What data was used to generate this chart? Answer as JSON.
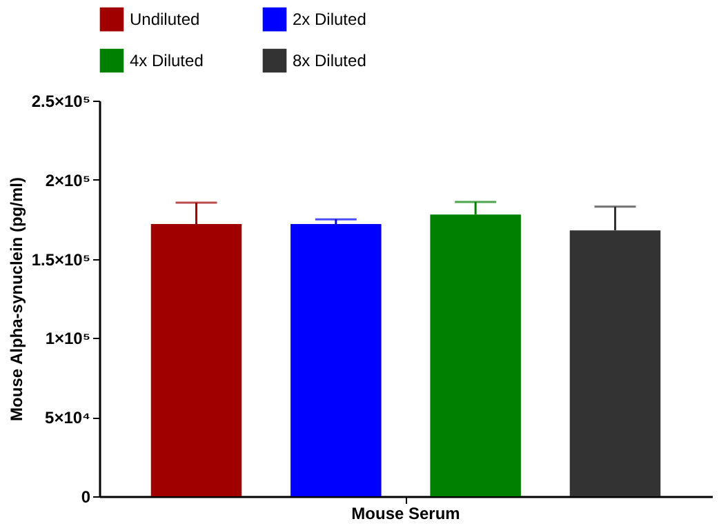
{
  "chart_data": {
    "type": "bar",
    "ylabel": "Mouse Alpha-synuclein (pg/ml)",
    "categories": [
      "Mouse Serum"
    ],
    "series": [
      {
        "name": "Undiluted",
        "color": "#a00000",
        "values": [
          172000
        ],
        "errors": [
          [
            172000,
            185500
          ]
        ]
      },
      {
        "name": "2x Diluted",
        "color": "#0000ff",
        "values": [
          172000
        ],
        "errors": [
          [
            172000,
            175000
          ]
        ]
      },
      {
        "name": "4x Diluted",
        "color": "#008000",
        "values": [
          178000
        ],
        "errors": [
          [
            178000,
            186000
          ]
        ]
      },
      {
        "name": "8x Diluted",
        "color": "#333333",
        "values": [
          168000
        ],
        "errors": [
          [
            168000,
            183000
          ]
        ]
      }
    ],
    "ylim": [
      0,
      250000
    ],
    "yticks": [
      0,
      {
        "value": 50000,
        "label": "5×10⁴"
      },
      {
        "value": 100000,
        "label": "1×10⁵"
      },
      {
        "value": 150000,
        "label": "1.5×10⁵"
      },
      {
        "value": 200000,
        "label": "2×10⁵"
      },
      {
        "value": 250000,
        "label": "2.5×10⁵"
      }
    ],
    "grid": false,
    "legend": "top"
  }
}
